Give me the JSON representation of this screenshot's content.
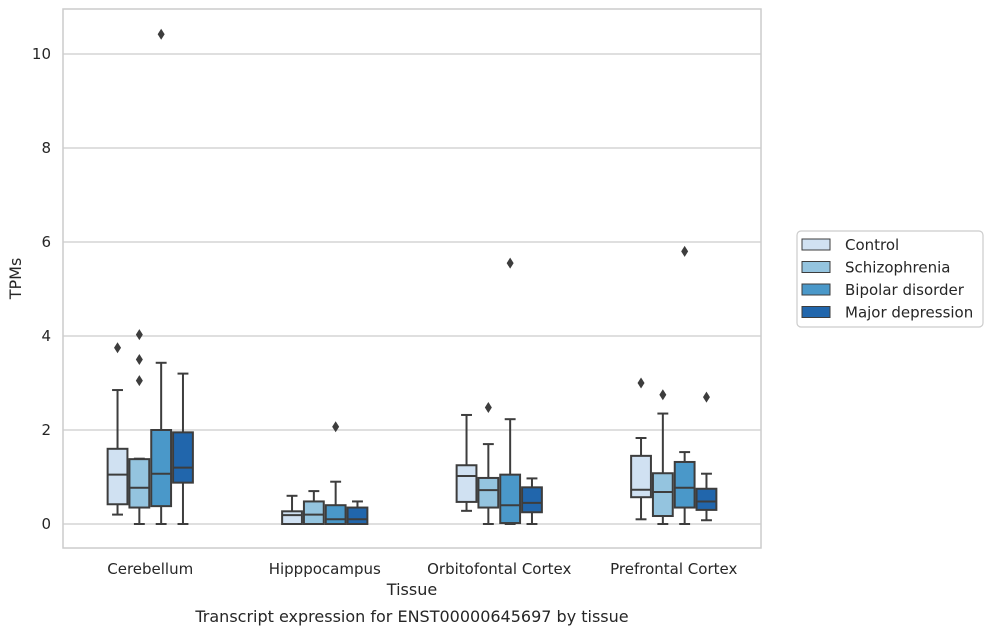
{
  "chart_data": {
    "type": "box",
    "title": "Transcript expression for ENST00000645697 by tissue",
    "xlabel": "Tissue",
    "ylabel": "TPMs",
    "ylim": [
      -0.5,
      10.9
    ],
    "yticks": [
      0,
      2,
      4,
      6,
      8,
      10
    ],
    "categories": [
      "Cerebellum",
      "Hipppocampus",
      "Orbitofontal Cortex",
      "Prefrontal Cortex"
    ],
    "grid": "horizontal",
    "legend_position": "right",
    "series": [
      {
        "name": "Control",
        "color": "#d0e1f2",
        "boxes": [
          {
            "whislo": 0.2,
            "q1": 0.42,
            "med": 1.05,
            "q3": 1.6,
            "whishi": 2.85,
            "fliers": [
              3.75
            ]
          },
          {
            "whislo": 0.0,
            "q1": 0.0,
            "med": 0.19,
            "q3": 0.27,
            "whishi": 0.6,
            "fliers": []
          },
          {
            "whislo": 0.28,
            "q1": 0.47,
            "med": 1.02,
            "q3": 1.25,
            "whishi": 2.32,
            "fliers": []
          },
          {
            "whislo": 0.1,
            "q1": 0.57,
            "med": 0.73,
            "q3": 1.45,
            "whishi": 1.83,
            "fliers": [
              3.0
            ]
          }
        ]
      },
      {
        "name": "Schizophrenia",
        "color": "#94c4df",
        "boxes": [
          {
            "whislo": 0.0,
            "q1": 0.35,
            "med": 0.77,
            "q3": 1.38,
            "whishi": 1.39,
            "fliers": [
              3.05,
              3.5,
              4.03
            ]
          },
          {
            "whislo": 0.0,
            "q1": 0.0,
            "med": 0.2,
            "q3": 0.48,
            "whishi": 0.7,
            "fliers": []
          },
          {
            "whislo": 0.0,
            "q1": 0.35,
            "med": 0.72,
            "q3": 0.98,
            "whishi": 1.7,
            "fliers": [
              2.48
            ]
          },
          {
            "whislo": 0.0,
            "q1": 0.17,
            "med": 0.68,
            "q3": 1.08,
            "whishi": 2.35,
            "fliers": [
              2.75
            ]
          }
        ]
      },
      {
        "name": "Bipolar disorder",
        "color": "#4a98c9",
        "boxes": [
          {
            "whislo": 0.0,
            "q1": 0.38,
            "med": 1.07,
            "q3": 2.0,
            "whishi": 3.43,
            "fliers": [
              10.42
            ]
          },
          {
            "whislo": 0.0,
            "q1": 0.0,
            "med": 0.1,
            "q3": 0.4,
            "whishi": 0.9,
            "fliers": [
              2.07
            ]
          },
          {
            "whislo": 0.0,
            "q1": 0.02,
            "med": 0.4,
            "q3": 1.05,
            "whishi": 2.23,
            "fliers": [
              5.55
            ]
          },
          {
            "whislo": 0.0,
            "q1": 0.35,
            "med": 0.77,
            "q3": 1.32,
            "whishi": 1.53,
            "fliers": [
              5.8
            ]
          }
        ]
      },
      {
        "name": "Major depression",
        "color": "#2166ac",
        "boxes": [
          {
            "whislo": 0.0,
            "q1": 0.88,
            "med": 1.2,
            "q3": 1.95,
            "whishi": 3.2,
            "fliers": []
          },
          {
            "whislo": 0.0,
            "q1": 0.0,
            "med": 0.1,
            "q3": 0.35,
            "whishi": 0.48,
            "fliers": []
          },
          {
            "whislo": 0.0,
            "q1": 0.25,
            "med": 0.45,
            "q3": 0.78,
            "whishi": 0.97,
            "fliers": []
          },
          {
            "whislo": 0.08,
            "q1": 0.3,
            "med": 0.48,
            "q3": 0.75,
            "whishi": 1.07,
            "fliers": [
              2.7
            ]
          }
        ]
      }
    ]
  }
}
